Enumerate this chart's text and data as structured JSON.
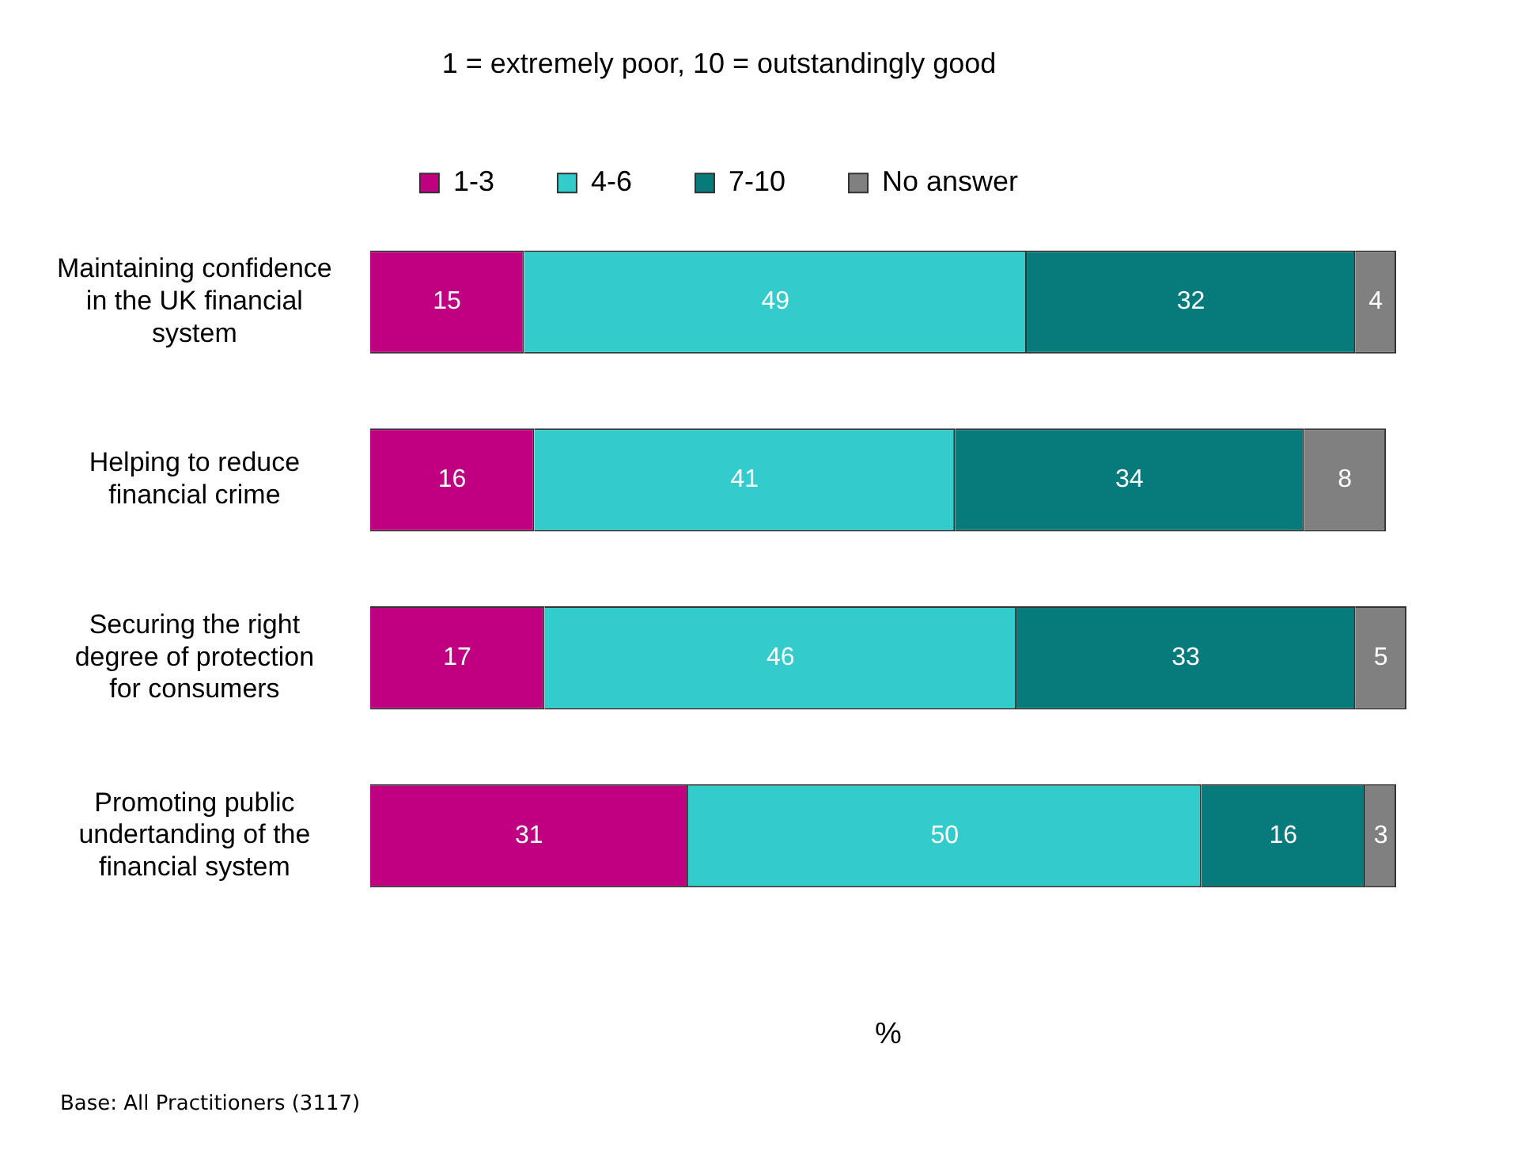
{
  "chart_data": {
    "type": "bar",
    "orientation": "horizontal",
    "stacked": true,
    "title": "1 = extremely poor, 10 = outstandingly good",
    "xlabel": "%",
    "categories": [
      "Maintaining confidence in the UK financial system",
      "Helping to reduce financial crime",
      "Securing the right degree of protection for consumers",
      "Promoting public undertanding of the financial system"
    ],
    "series": [
      {
        "name": "1-3",
        "color": "#bf0080",
        "values": [
          15,
          16,
          17,
          31
        ]
      },
      {
        "name": "4-6",
        "color": "#33cccc",
        "values": [
          49,
          41,
          46,
          50
        ]
      },
      {
        "name": "7-10",
        "color": "#077b7b",
        "values": [
          32,
          34,
          33,
          16
        ]
      },
      {
        "name": "No answer",
        "color": "#808080",
        "values": [
          4,
          8,
          5,
          3
        ]
      }
    ],
    "xlim": [
      0,
      101
    ],
    "tick_labels": "y",
    "grid": false,
    "legend": "top",
    "data_labels": true,
    "annotations": [
      "Base: All Practitioners (3117)"
    ]
  }
}
